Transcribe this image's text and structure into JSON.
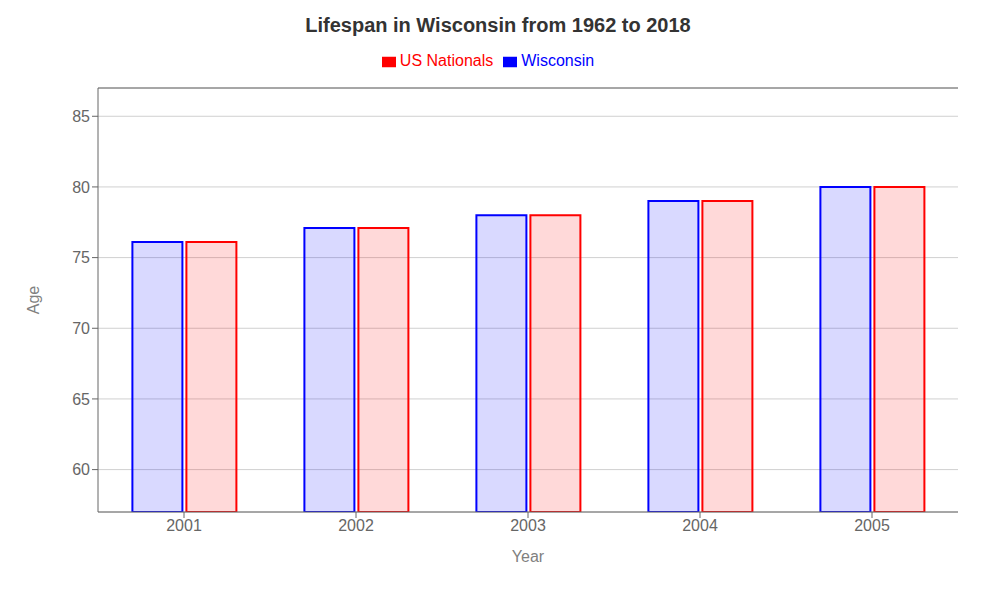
{
  "chart_data": {
    "type": "bar",
    "title": "Lifespan in Wisconsin from 1962 to 2018",
    "xlabel": "Year",
    "ylabel": "Age",
    "categories": [
      "2001",
      "2002",
      "2003",
      "2004",
      "2005"
    ],
    "series": [
      {
        "name": "Wisconsin",
        "color": "#0000ff",
        "values": [
          76.1,
          77.1,
          78.0,
          79.0,
          80.0
        ]
      },
      {
        "name": "US Nationals",
        "color": "#ff0000",
        "values": [
          76.1,
          77.1,
          78.0,
          79.0,
          80.0
        ]
      }
    ],
    "ylim": [
      57,
      87
    ],
    "yticks": [
      60,
      65,
      70,
      75,
      80,
      85
    ],
    "grid": true,
    "legend": "top"
  }
}
